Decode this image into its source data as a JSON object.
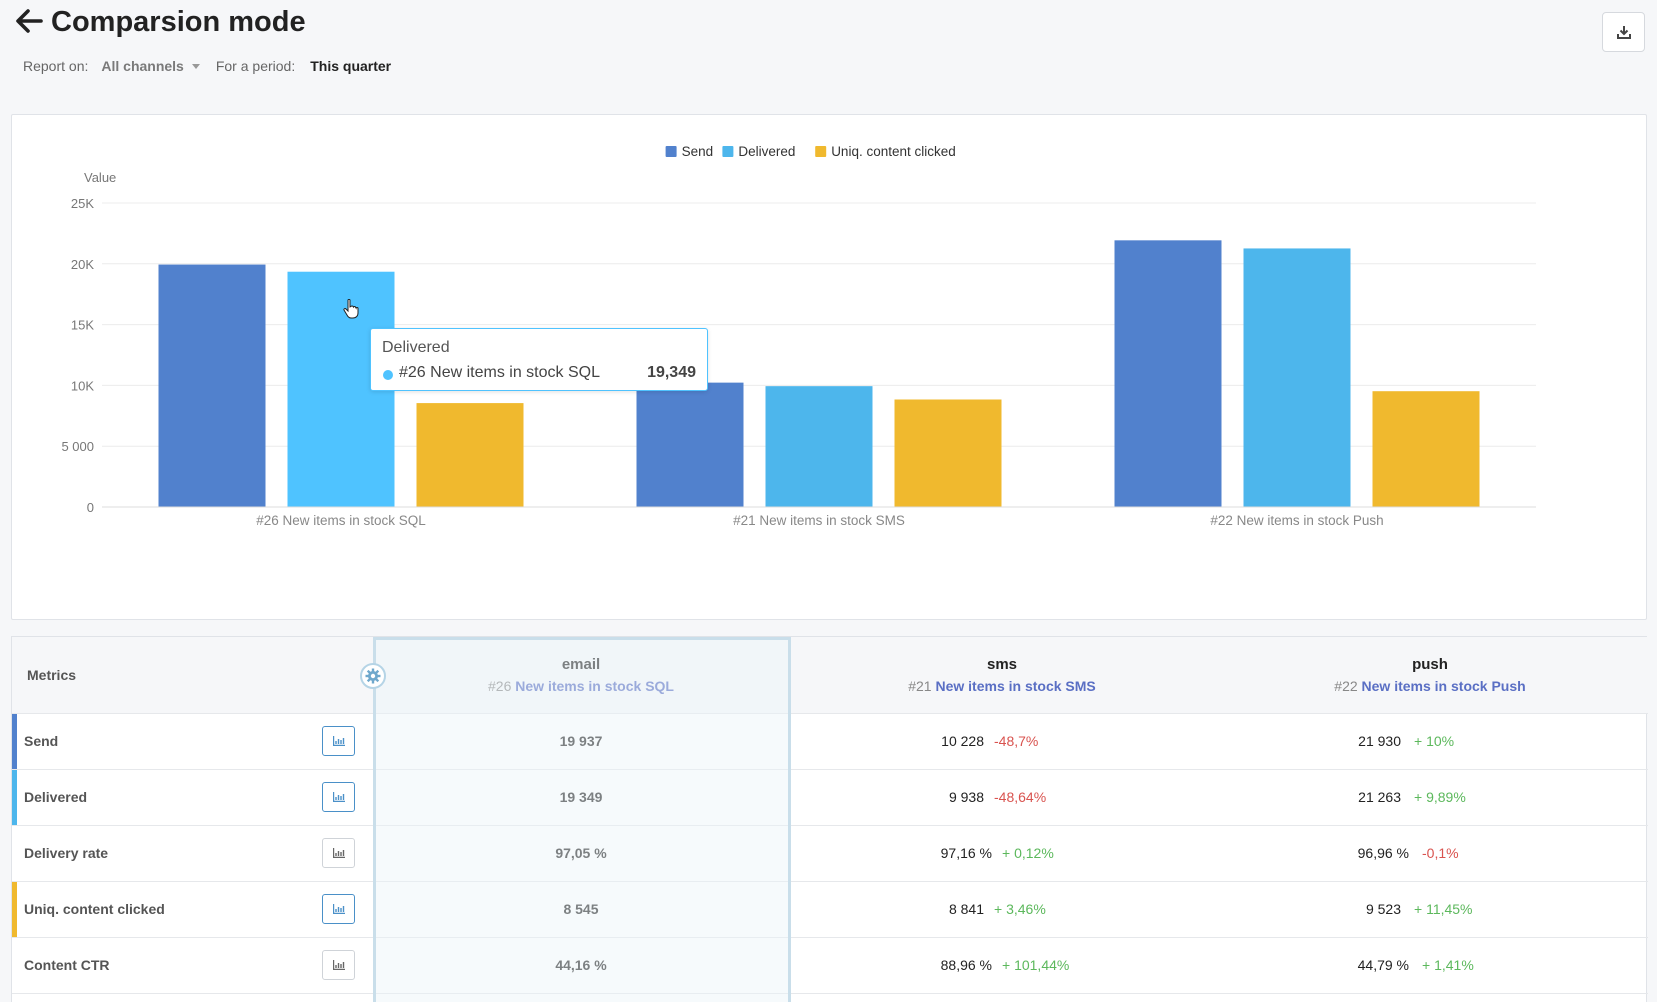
{
  "header": {
    "title": "Comparsion mode",
    "report_on_label": "Report on:",
    "channel_value": "All channels",
    "period_label": "For a period:",
    "period_value": "This quarter"
  },
  "chart_data": {
    "type": "bar",
    "ylabel": "Value",
    "ylim": [
      0,
      25000
    ],
    "yticks": [
      "0",
      "5 000",
      "10K",
      "15K",
      "20K",
      "25K"
    ],
    "legend_position": "top-center",
    "categories": [
      "#26 New items in stock SQL",
      "#21 New items in stock SMS",
      "#22 New items in stock Push"
    ],
    "series": [
      {
        "name": "Send",
        "color": "#5181cd",
        "values": [
          19937,
          10228,
          21930
        ]
      },
      {
        "name": "Delivered",
        "color": "#4db6ec",
        "values": [
          19349,
          9938,
          21263
        ]
      },
      {
        "name": "Uniq. content clicked",
        "color": "#f0b92e",
        "values": [
          8545,
          8841,
          9523
        ]
      }
    ],
    "tooltip": {
      "title": "Delivered",
      "item": "#26 New items in stock SQL",
      "value": "19,349",
      "color": "#4fc3ff"
    }
  },
  "table": {
    "metrics_header": "Metrics",
    "columns": [
      {
        "channel": "email",
        "id": "#26",
        "campaign": "New items in stock SQL"
      },
      {
        "channel": "sms",
        "id": "#21",
        "campaign": "New items in stock SMS"
      },
      {
        "channel": "push",
        "id": "#22",
        "campaign": "New items in stock Push"
      }
    ],
    "rows": [
      {
        "name": "Send",
        "color": "#5181cd",
        "values": [
          "19 937",
          "10 228",
          "21 930"
        ],
        "deltas": [
          "",
          "-48,7%",
          "+ 10%"
        ]
      },
      {
        "name": "Delivered",
        "color": "#4db6ec",
        "values": [
          "19 349",
          "9 938",
          "21 263"
        ],
        "deltas": [
          "",
          "-48,64%",
          "+ 9,89%"
        ]
      },
      {
        "name": "Delivery rate",
        "color": "",
        "values": [
          "97,05 %",
          "97,16 %",
          "96,96 %"
        ],
        "deltas": [
          "",
          "+ 0,12%",
          "-0,1%"
        ]
      },
      {
        "name": "Uniq. content clicked",
        "color": "#f0b92e",
        "values": [
          "8 545",
          "8 841",
          "9 523"
        ],
        "deltas": [
          "",
          "+ 3,46%",
          "+ 11,45%"
        ]
      },
      {
        "name": "Content CTR",
        "color": "",
        "values": [
          "44,16 %",
          "88,96 %",
          "44,79 %"
        ],
        "deltas": [
          "",
          "+ 101,44%",
          "+ 1,41%"
        ]
      }
    ]
  }
}
